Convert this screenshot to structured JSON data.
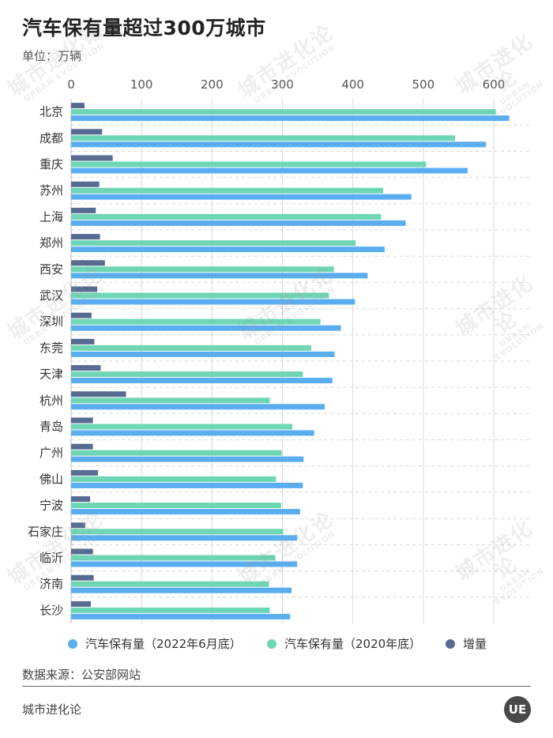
{
  "title": "汽车保有量超过300万城市",
  "unit_label": "单位：万辆",
  "source": "数据来源：公安部网站",
  "brand": "城市进化论",
  "logo_text": "UE",
  "watermark": {
    "cn": "城市进化论",
    "en": "URBAN EVOLUTION"
  },
  "colors": {
    "series_2022": "#5aaef0",
    "series_2020": "#6ed6b4",
    "series_increase": "#576a91",
    "grid": "#d9d9d9",
    "axis_text": "#555555"
  },
  "legend": [
    {
      "label": "汽车保有量（2022年6月底）",
      "color": "#5aaef0"
    },
    {
      "label": "汽车保有量（2020年底）",
      "color": "#6ed6b4"
    },
    {
      "label": "增量",
      "color": "#576a91"
    }
  ],
  "chart_data": {
    "type": "bar",
    "orientation": "horizontal",
    "title": "汽车保有量超过300万城市",
    "xlabel": "",
    "ylabel": "",
    "unit": "万辆",
    "xlim": [
      0,
      625
    ],
    "ticks": [
      0,
      100,
      200,
      300,
      400,
      500,
      600
    ],
    "categories": [
      "北京",
      "成都",
      "重庆",
      "苏州",
      "上海",
      "郑州",
      "西安",
      "武汉",
      "深圳",
      "东莞",
      "天津",
      "杭州",
      "青岛",
      "广州",
      "佛山",
      "宁波",
      "石家庄",
      "临沂",
      "济南",
      "长沙"
    ],
    "series": [
      {
        "name": "增量",
        "values": [
          19,
          44,
          59,
          40,
          35,
          41,
          48,
          37,
          29,
          33,
          42,
          78,
          31,
          31,
          38,
          27,
          20,
          31,
          32,
          28
        ]
      },
      {
        "name": "汽车保有量（2020年底）",
        "values": [
          603,
          545,
          504,
          443,
          440,
          404,
          373,
          366,
          354,
          341,
          329,
          282,
          314,
          299,
          291,
          298,
          301,
          290,
          281,
          282
        ]
      },
      {
        "name": "汽车保有量（2022年6月底）",
        "values": [
          622,
          589,
          563,
          483,
          475,
          445,
          421,
          403,
          383,
          374,
          371,
          360,
          345,
          330,
          329,
          325,
          321,
          321,
          313,
          311
        ]
      }
    ],
    "legend_position": "bottom"
  }
}
